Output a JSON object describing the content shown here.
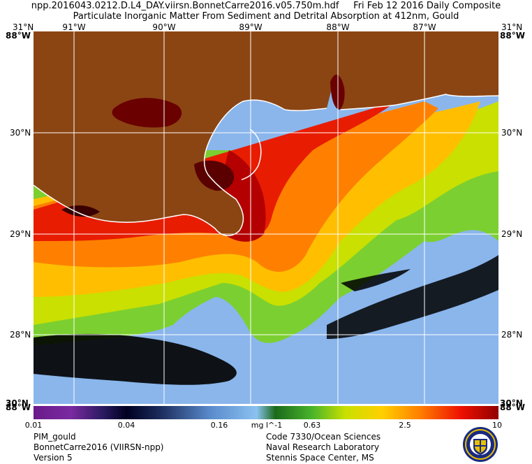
{
  "header": {
    "filename": "npp.2016043.0212.D.L4_DAY.viirsn.BonnetCarre2016.v05.750m.hdf",
    "date": "Fri Feb 12 2016 Daily Composite",
    "product": "Particulate Inorganic Matter From Sediment and Detrital Absorption at 412nm, Gould"
  },
  "map": {
    "longitude_labels": [
      "91°W",
      "90°W",
      "89°W",
      "88°W",
      "87°W"
    ],
    "latitude_labels": [
      "30°N",
      "29°N",
      "28°N"
    ],
    "corner_top": "31°N",
    "corner_bottom": "30°N",
    "corner_side_top": "88°W",
    "corner_side_bottom": "88°W",
    "colors": {
      "land": "#8b4513",
      "coastline": "#ffffff",
      "no_data": "#000000",
      "grid": "#ffffff"
    }
  },
  "colorbar": {
    "ticks": [
      "0.01",
      "0.04",
      "0.16",
      "0.63",
      "2.5",
      "10"
    ],
    "units": "mg l^-1"
  },
  "footer": {
    "left": [
      "PIM_gould",
      "BonnetCarre2016 (VIIRSN-npp)",
      "Version 5"
    ],
    "right": [
      "Code 7330/Ocean Sciences",
      "Naval Research Laboratory",
      "Stennis Space Center, MS"
    ]
  }
}
